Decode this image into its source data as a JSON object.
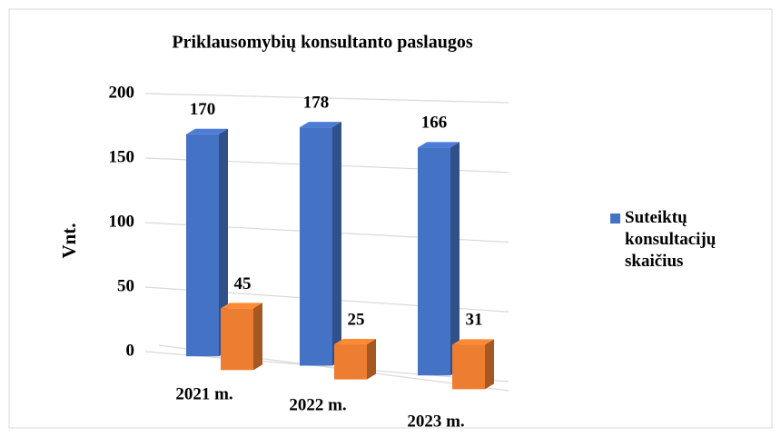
{
  "chart_data": {
    "type": "bar3d",
    "title": "Priklausomybių konsultanto paslaugos",
    "y_label": "Vnt.",
    "categories": [
      "2021 m.",
      "2022 m.",
      "2023 m."
    ],
    "series": [
      {
        "name": "Suteiktų konsultacijų skaičius",
        "color": "#4472c4",
        "values": [
          170,
          178,
          166
        ]
      },
      {
        "color": "#ed7d31",
        "values": [
          45,
          25,
          31
        ]
      }
    ],
    "ylim": [
      0,
      200
    ],
    "yticks": [
      0,
      50,
      100,
      150,
      200
    ],
    "grid": true,
    "legend": "right"
  }
}
